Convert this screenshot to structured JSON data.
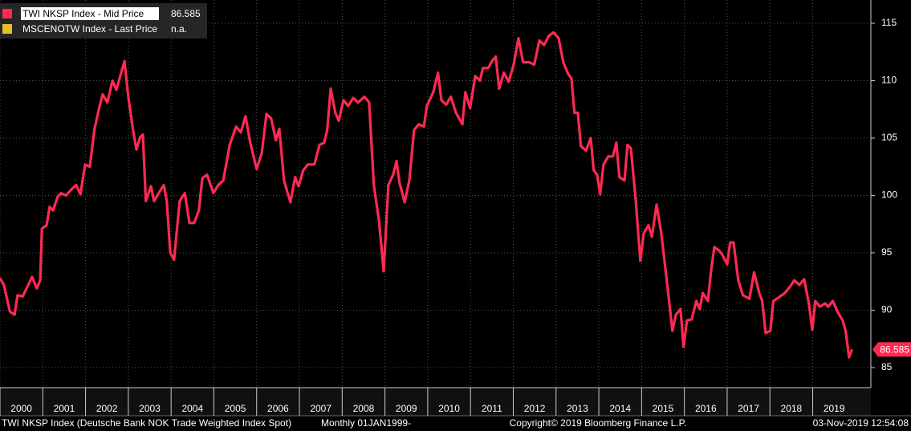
{
  "chart_data": {
    "type": "line",
    "x": [
      2000,
      2000.09,
      2000.23,
      2000.34,
      2000.41,
      2000.53,
      2000.75,
      2000.86,
      2000.94,
      2000.98,
      2001.09,
      2001.16,
      2001.24,
      2001.35,
      2001.43,
      2001.54,
      2001.69,
      2001.78,
      2001.88,
      2001.99,
      2002.1,
      2002.21,
      2002.33,
      2002.4,
      2002.51,
      2002.63,
      2002.72,
      2002.81,
      2002.91,
      2003.0,
      2003.11,
      2003.19,
      2003.28,
      2003.34,
      2003.41,
      2003.53,
      2003.6,
      2003.71,
      2003.83,
      2003.9,
      2003.98,
      2004.07,
      2004.2,
      2004.32,
      2004.43,
      2004.54,
      2004.65,
      2004.73,
      2004.84,
      2004.99,
      2005.1,
      2005.22,
      2005.37,
      2005.52,
      2005.63,
      2005.74,
      2005.85,
      2006.0,
      2006.12,
      2006.23,
      2006.34,
      2006.45,
      2006.53,
      2006.64,
      2006.79,
      2006.9,
      2006.98,
      2007.09,
      2007.2,
      2007.35,
      2007.47,
      2007.58,
      2007.65,
      2007.73,
      2007.84,
      2007.92,
      2008.03,
      2008.14,
      2008.26,
      2008.37,
      2008.52,
      2008.63,
      2008.74,
      2008.86,
      2008.97,
      2009.08,
      2009.19,
      2009.27,
      2009.34,
      2009.46,
      2009.57,
      2009.68,
      2009.79,
      2009.91,
      2009.98,
      2010.13,
      2010.24,
      2010.32,
      2010.43,
      2010.54,
      2010.66,
      2010.81,
      2010.88,
      2010.99,
      2011.11,
      2011.22,
      2011.29,
      2011.41,
      2011.52,
      2011.59,
      2011.67,
      2011.78,
      2011.89,
      2012.01,
      2012.12,
      2012.23,
      2012.38,
      2012.49,
      2012.61,
      2012.72,
      2012.83,
      2012.94,
      2013.06,
      2013.17,
      2013.28,
      2013.36,
      2013.43,
      2013.51,
      2013.58,
      2013.7,
      2013.81,
      2013.88,
      2013.96,
      2014.03,
      2014.11,
      2014.22,
      2014.33,
      2014.41,
      2014.48,
      2014.6,
      2014.67,
      2014.75,
      2014.86,
      2014.97,
      2015.05,
      2015.16,
      2015.24,
      2015.35,
      2015.46,
      2015.61,
      2015.72,
      2015.8,
      2015.91,
      2015.98,
      2016.06,
      2016.17,
      2016.28,
      2016.36,
      2016.43,
      2016.55,
      2016.62,
      2016.7,
      2016.81,
      2016.89,
      2017.0,
      2017.07,
      2017.15,
      2017.26,
      2017.37,
      2017.52,
      2017.63,
      2017.75,
      2017.82,
      2017.9,
      2018.01,
      2018.08,
      2018.24,
      2018.35,
      2018.46,
      2018.57,
      2018.69,
      2018.8,
      2018.91,
      2018.99,
      2019.06,
      2019.17,
      2019.29,
      2019.36,
      2019.47,
      2019.59,
      2019.7,
      2019.77,
      2019.85,
      2019.92
    ],
    "series": [
      {
        "name": "TWI NKSP Index - Mid Price",
        "color": "#ff2a52",
        "values": [
          92.8,
          92.2,
          89.9,
          89.6,
          91.3,
          91.2,
          92.9,
          91.9,
          92.6,
          97.1,
          97.4,
          99.0,
          98.7,
          99.9,
          100.2,
          100.0,
          100.6,
          100.9,
          100.1,
          102.7,
          102.5,
          105.8,
          107.8,
          108.8,
          108.1,
          110.0,
          109.2,
          110.4,
          111.7,
          108.6,
          105.7,
          104.0,
          105.1,
          105.3,
          99.5,
          100.8,
          99.5,
          100.2,
          100.9,
          99.5,
          95.0,
          94.4,
          99.5,
          100.2,
          97.6,
          97.6,
          98.7,
          101.5,
          101.8,
          100.2,
          100.9,
          101.3,
          104.4,
          106.0,
          105.5,
          106.9,
          104.6,
          102.3,
          103.7,
          107.1,
          106.7,
          104.8,
          105.8,
          101.3,
          99.4,
          101.6,
          100.8,
          102.2,
          102.7,
          102.7,
          104.4,
          104.6,
          105.7,
          109.3,
          107.2,
          106.5,
          108.3,
          107.8,
          108.5,
          108.1,
          108.6,
          108.1,
          100.9,
          97.8,
          93.4,
          100.9,
          101.8,
          103.0,
          101.1,
          99.4,
          101.3,
          105.7,
          106.2,
          106.0,
          107.8,
          109.0,
          110.7,
          108.3,
          107.9,
          108.6,
          107.2,
          106.2,
          109.0,
          107.6,
          110.4,
          110.0,
          111.1,
          111.1,
          111.8,
          112.1,
          109.3,
          110.7,
          109.9,
          111.4,
          113.7,
          111.6,
          111.6,
          111.4,
          113.5,
          113.1,
          113.9,
          114.2,
          113.7,
          111.6,
          110.6,
          110.2,
          107.2,
          107.2,
          104.3,
          103.9,
          105.0,
          102.2,
          101.8,
          100.1,
          102.7,
          103.4,
          103.4,
          104.6,
          101.6,
          101.3,
          104.4,
          104.1,
          99.7,
          94.3,
          96.7,
          97.4,
          96.4,
          99.2,
          96.7,
          91.9,
          88.2,
          89.6,
          90.1,
          86.8,
          89.1,
          89.2,
          90.8,
          90.1,
          91.5,
          90.8,
          93.3,
          95.5,
          95.2,
          94.8,
          94.0,
          95.9,
          95.9,
          92.6,
          91.3,
          91.0,
          93.3,
          91.5,
          90.8,
          88.0,
          88.2,
          90.8,
          91.2,
          91.5,
          92.0,
          92.6,
          92.2,
          92.7,
          90.6,
          88.3,
          90.8,
          90.3,
          90.6,
          90.3,
          90.8,
          89.8,
          89.1,
          88.2,
          85.9,
          86.585
        ]
      },
      {
        "name": "MSCENOTW Index - Last Price",
        "color": "#e8c21e",
        "last": "n.a."
      }
    ],
    "xlim": [
      2000,
      2020.36
    ],
    "xticks": [
      2000,
      2001,
      2002,
      2003,
      2004,
      2005,
      2006,
      2007,
      2008,
      2009,
      2010,
      2011,
      2012,
      2013,
      2014,
      2015,
      2016,
      2017,
      2018,
      2019
    ],
    "ylim": [
      83.25,
      117.03
    ],
    "yticks": [
      85,
      90,
      95,
      100,
      105,
      110,
      115
    ],
    "grid": true,
    "legend": "top-left",
    "footer": {
      "description": "TWI NKSP Index (Deutsche Bank NOK Trade Weighted Index Spot)",
      "period": "Monthly 01JAN1999-",
      "copyright": "Copyright© 2019 Bloomberg Finance L.P.",
      "timestamp": "03-Nov-2019 12:54:08"
    }
  }
}
